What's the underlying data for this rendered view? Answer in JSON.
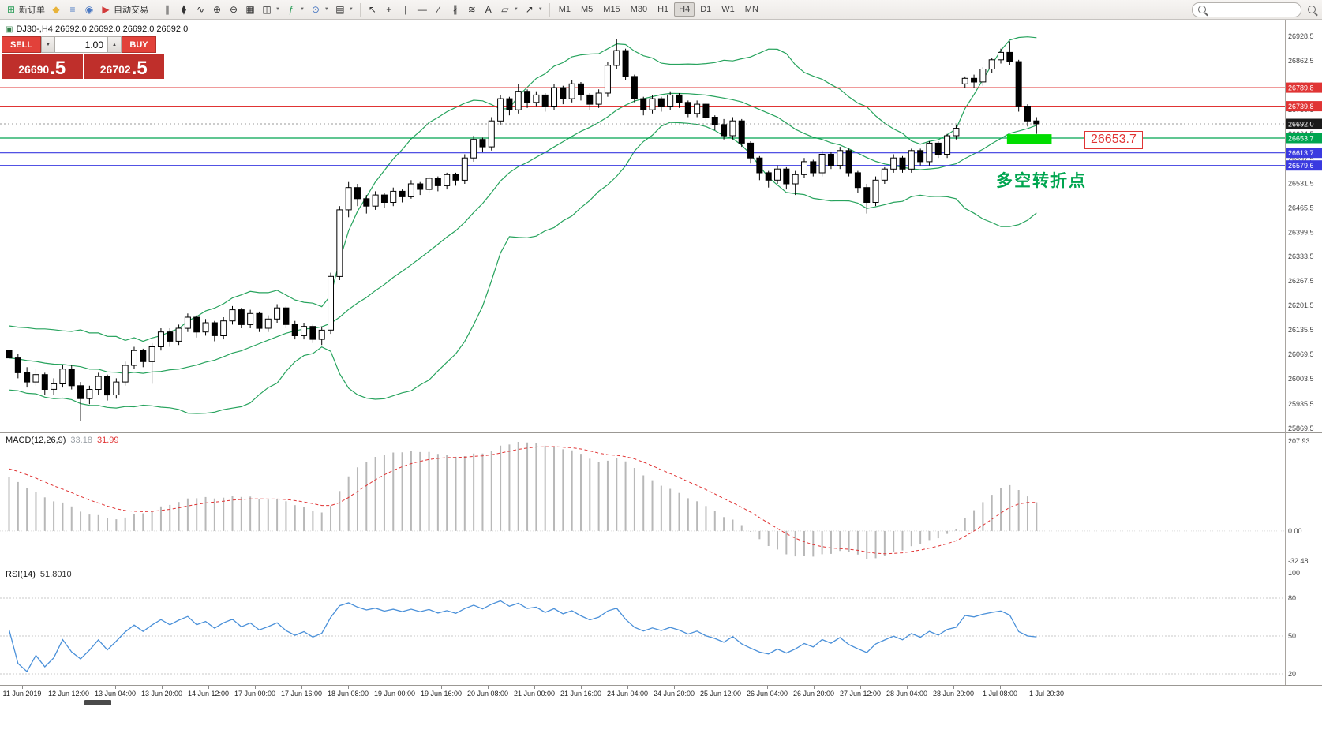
{
  "toolbar": {
    "caret_glyph": "▼",
    "buttons_left": [
      {
        "name": "new-order",
        "glyph": "⊞",
        "label": "新订单",
        "color": "#2e9e5b"
      },
      {
        "name": "chart-window",
        "glyph": "◆",
        "color": "#e8b339"
      },
      {
        "name": "market-watch",
        "glyph": "≡",
        "color": "#4a78c2"
      },
      {
        "name": "alerts",
        "glyph": "◉",
        "color": "#4a78c2"
      },
      {
        "name": "algo-trading",
        "glyph": "▶",
        "label": "自动交易",
        "color": "#d23b3b"
      }
    ],
    "buttons_chart": [
      {
        "name": "bar-chart",
        "glyph": "∥"
      },
      {
        "name": "candlestick-chart",
        "glyph": "⧫"
      },
      {
        "name": "line-chart",
        "glyph": "∿"
      },
      {
        "name": "zoom-in",
        "glyph": "⊕"
      },
      {
        "name": "zoom-out",
        "glyph": "⊖"
      },
      {
        "name": "grid",
        "glyph": "▦"
      },
      {
        "name": "tile-windows",
        "glyph": "◫",
        "caret": true
      },
      {
        "name": "indicators",
        "glyph": "ƒ",
        "caret": true,
        "color": "#2e9e5b"
      },
      {
        "name": "periods-clock",
        "glyph": "⊙",
        "caret": true,
        "color": "#4a78c2"
      },
      {
        "name": "calendar",
        "glyph": "▤",
        "caret": true
      }
    ],
    "buttons_tools": [
      {
        "name": "cursor",
        "glyph": "↖"
      },
      {
        "name": "crosshair",
        "glyph": "+"
      },
      {
        "name": "vertical-line",
        "glyph": "|"
      },
      {
        "name": "horizontal-line",
        "glyph": "—"
      },
      {
        "name": "trendline",
        "glyph": "∕"
      },
      {
        "name": "channel",
        "glyph": "∦"
      },
      {
        "name": "fibonacci",
        "glyph": "≋"
      },
      {
        "name": "text-tool",
        "glyph": "A"
      },
      {
        "name": "shapes",
        "glyph": "▱",
        "caret": true
      },
      {
        "name": "arrows",
        "glyph": "↗",
        "caret": true
      }
    ],
    "timeframes": [
      "M1",
      "M5",
      "M15",
      "M30",
      "H1",
      "H4",
      "D1",
      "W1",
      "MN"
    ],
    "active_timeframe": "H4"
  },
  "trade_panel": {
    "sell_label": "SELL",
    "buy_label": "BUY",
    "volume": "1.00",
    "vol_down_glyph": "▼",
    "vol_up_glyph": "▲",
    "sell_price_main": "26690",
    "sell_price_frac": ".5",
    "buy_price_main": "26702",
    "buy_price_frac": ".5"
  },
  "chart": {
    "symbol_info": "DJ30-,H4  26692.0 26692.0 26692.0 26692.0",
    "colors": {
      "band": "#27a35d",
      "bull": "#ffffff",
      "bear": "#000000",
      "wick": "#000000",
      "red_line": "#e03434",
      "blue_line": "#3a3ae0",
      "green_line": "#00a550",
      "highlight": "#00dd00",
      "current_tag": "#1a1a1a"
    },
    "price_axis": [
      "26928.5",
      "26862.5",
      "26796.5",
      "26730.5",
      "26664.5",
      "26597.5",
      "26531.5",
      "26465.5",
      "26399.5",
      "26333.5",
      "26267.5",
      "26201.5",
      "26135.5",
      "26069.5",
      "26003.5",
      "25935.5",
      "25869.5"
    ],
    "hlines": [
      {
        "price": 26789.8,
        "label": "26789.8",
        "color": "#e03434"
      },
      {
        "price": 26739.8,
        "label": "26739.8",
        "color": "#e03434"
      },
      {
        "price": 26692.0,
        "label": "26692.0",
        "color": "#1a1a1a",
        "style": "current"
      },
      {
        "price": 26653.7,
        "label": "26653.7",
        "color": "#00a550"
      },
      {
        "price": 26613.7,
        "label": "26613.7",
        "color": "#3a3ae0"
      },
      {
        "price": 26579.6,
        "label": "26579.6",
        "color": "#3a3ae0"
      }
    ],
    "annotation": {
      "price_label": "26653.7",
      "note": "多空转折点",
      "highlight": {
        "from_candle": 112,
        "to_candle": 117,
        "top_price": 26664,
        "bottom_price": 26637
      }
    },
    "candles": [
      [
        26080,
        26090,
        26040,
        26060
      ],
      [
        26060,
        26070,
        26005,
        26020
      ],
      [
        26020,
        26035,
        25980,
        25995
      ],
      [
        25995,
        26030,
        25985,
        26015
      ],
      [
        26015,
        26020,
        25960,
        25975
      ],
      [
        25975,
        26005,
        25960,
        25990
      ],
      [
        25990,
        26040,
        25980,
        26030
      ],
      [
        26030,
        26040,
        25975,
        25985
      ],
      [
        25985,
        25995,
        25890,
        25950
      ],
      [
        25950,
        25985,
        25935,
        25975
      ],
      [
        25975,
        26020,
        25960,
        26010
      ],
      [
        26010,
        26015,
        25945,
        25960
      ],
      [
        25960,
        26005,
        25950,
        25995
      ],
      [
        25995,
        26050,
        25985,
        26040
      ],
      [
        26040,
        26090,
        26030,
        26080
      ],
      [
        26080,
        26085,
        26035,
        26050
      ],
      [
        26050,
        26100,
        25990,
        26090
      ],
      [
        26090,
        26140,
        26080,
        26130
      ],
      [
        26130,
        26140,
        26090,
        26105
      ],
      [
        26105,
        26150,
        26095,
        26140
      ],
      [
        26140,
        26180,
        26130,
        26170
      ],
      [
        26170,
        26175,
        26115,
        26130
      ],
      [
        26130,
        26165,
        26120,
        26155
      ],
      [
        26155,
        26160,
        26105,
        26120
      ],
      [
        26120,
        26170,
        26110,
        26160
      ],
      [
        26160,
        26200,
        26150,
        26190
      ],
      [
        26190,
        26195,
        26140,
        26150
      ],
      [
        26150,
        26190,
        26140,
        26180
      ],
      [
        26180,
        26185,
        26130,
        26140
      ],
      [
        26140,
        26175,
        26130,
        26165
      ],
      [
        26165,
        26205,
        26155,
        26195
      ],
      [
        26195,
        26200,
        26140,
        26150
      ],
      [
        26150,
        26160,
        26110,
        26120
      ],
      [
        26120,
        26155,
        26110,
        26145
      ],
      [
        26145,
        26150,
        26100,
        26110
      ],
      [
        26110,
        26145,
        26095,
        26135
      ],
      [
        26135,
        26290,
        26125,
        26280
      ],
      [
        26280,
        26470,
        26270,
        26460
      ],
      [
        26460,
        26535,
        26440,
        26520
      ],
      [
        26520,
        26530,
        26470,
        26490
      ],
      [
        26490,
        26500,
        26450,
        26470
      ],
      [
        26470,
        26510,
        26460,
        26500
      ],
      [
        26500,
        26505,
        26465,
        26480
      ],
      [
        26480,
        26520,
        26470,
        26510
      ],
      [
        26510,
        26515,
        26480,
        26495
      ],
      [
        26495,
        26540,
        26490,
        26530
      ],
      [
        26530,
        26535,
        26500,
        26515
      ],
      [
        26515,
        26550,
        26505,
        26545
      ],
      [
        26545,
        26550,
        26510,
        26525
      ],
      [
        26525,
        26560,
        26515,
        26555
      ],
      [
        26555,
        26560,
        26525,
        26540
      ],
      [
        26540,
        26610,
        26530,
        26600
      ],
      [
        26600,
        26660,
        26590,
        26650
      ],
      [
        26650,
        26655,
        26615,
        26630
      ],
      [
        26630,
        26710,
        26620,
        26700
      ],
      [
        26700,
        26770,
        26690,
        26760
      ],
      [
        26760,
        26765,
        26715,
        26730
      ],
      [
        26730,
        26800,
        26720,
        26780
      ],
      [
        26780,
        26785,
        26735,
        26750
      ],
      [
        26750,
        26780,
        26740,
        26770
      ],
      [
        26770,
        26775,
        26725,
        26740
      ],
      [
        26740,
        26800,
        26730,
        26790
      ],
      [
        26790,
        26795,
        26745,
        26760
      ],
      [
        26760,
        26810,
        26750,
        26800
      ],
      [
        26800,
        26805,
        26755,
        26770
      ],
      [
        26770,
        26775,
        26730,
        26745
      ],
      [
        26745,
        26785,
        26735,
        26775
      ],
      [
        26775,
        26860,
        26765,
        26850
      ],
      [
        26850,
        26920,
        26840,
        26890
      ],
      [
        26890,
        26895,
        26810,
        26820
      ],
      [
        26820,
        26825,
        26750,
        26760
      ],
      [
        26760,
        26765,
        26715,
        26730
      ],
      [
        26730,
        26770,
        26720,
        26760
      ],
      [
        26760,
        26765,
        26725,
        26740
      ],
      [
        26740,
        26780,
        26730,
        26770
      ],
      [
        26770,
        26775,
        26735,
        26750
      ],
      [
        26750,
        26755,
        26710,
        26720
      ],
      [
        26720,
        26755,
        26710,
        26745
      ],
      [
        26745,
        26750,
        26700,
        26710
      ],
      [
        26710,
        26715,
        26675,
        26690
      ],
      [
        26690,
        26705,
        26650,
        26660
      ],
      [
        26660,
        26710,
        26650,
        26700
      ],
      [
        26700,
        26705,
        26630,
        26640
      ],
      [
        26640,
        26645,
        26585,
        26600
      ],
      [
        26600,
        26605,
        26540,
        26560
      ],
      [
        26560,
        26565,
        26520,
        26540
      ],
      [
        26540,
        26580,
        26530,
        26570
      ],
      [
        26570,
        26575,
        26515,
        26530
      ],
      [
        26530,
        26565,
        26500,
        26555
      ],
      [
        26555,
        26600,
        26545,
        26590
      ],
      [
        26590,
        26595,
        26550,
        26560
      ],
      [
        26560,
        26620,
        26550,
        26610
      ],
      [
        26610,
        26615,
        26570,
        26580
      ],
      [
        26580,
        26630,
        26570,
        26620
      ],
      [
        26620,
        26625,
        26550,
        26560
      ],
      [
        26560,
        26565,
        26505,
        26520
      ],
      [
        26520,
        26530,
        26450,
        26480
      ],
      [
        26480,
        26550,
        26470,
        26540
      ],
      [
        26540,
        26575,
        26530,
        26570
      ],
      [
        26570,
        26610,
        26560,
        26600
      ],
      [
        26600,
        26605,
        26560,
        26570
      ],
      [
        26570,
        26625,
        26560,
        26620
      ],
      [
        26620,
        26625,
        26580,
        26590
      ],
      [
        26590,
        26645,
        26580,
        26640
      ],
      [
        26640,
        26645,
        26600,
        26610
      ],
      [
        26610,
        26665,
        26600,
        26660
      ],
      [
        26660,
        26690,
        26650,
        26680
      ],
      [
        26800,
        26820,
        26790,
        26815
      ],
      [
        26815,
        26825,
        26790,
        26805
      ],
      [
        26805,
        26845,
        26795,
        26840
      ],
      [
        26840,
        26870,
        26830,
        26865
      ],
      [
        26865,
        26895,
        26855,
        26885
      ],
      [
        26885,
        26915,
        26850,
        26860
      ],
      [
        26860,
        26865,
        26725,
        26740
      ],
      [
        26740,
        26745,
        26685,
        26700
      ],
      [
        26700,
        26710,
        26665,
        26692
      ]
    ]
  },
  "macd": {
    "header": "MACD(12,26,9)",
    "value1": "33.18",
    "value2": "31.99",
    "axis": [
      "207.93",
      "0.00",
      "-32.48"
    ],
    "colors": {
      "hist": "#b8b8b8",
      "signal": "#e03434"
    }
  },
  "rsi": {
    "header": "RSI(14)",
    "value": "51.8010",
    "axis": [
      "100",
      "80",
      "50",
      "20"
    ],
    "levels": [
      80,
      50,
      20
    ],
    "colors": {
      "line": "#4a90d9",
      "level": "#c8c8c8"
    }
  },
  "time_axis": [
    "11 Jun 2019",
    "12 Jun 12:00",
    "13 Jun 04:00",
    "13 Jun 20:00",
    "14 Jun 12:00",
    "17 Jun 00:00",
    "17 Jun 16:00",
    "18 Jun 08:00",
    "19 Jun 00:00",
    "19 Jun 16:00",
    "20 Jun 08:00",
    "21 Jun 00:00",
    "21 Jun 16:00",
    "24 Jun 04:00",
    "24 Jun 20:00",
    "25 Jun 12:00",
    "26 Jun 04:00",
    "26 Jun 20:00",
    "27 Jun 12:00",
    "28 Jun 04:00",
    "28 Jun 20:00",
    "1 Jul 08:00",
    "1 Jul 20:30"
  ]
}
